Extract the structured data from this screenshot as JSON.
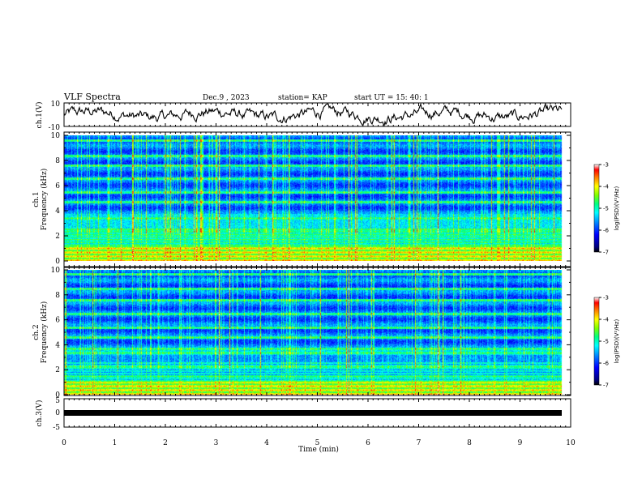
{
  "header": {
    "title": "VLF Spectra",
    "date": "Dec.9 , 2023",
    "station": "station= KAP",
    "start": "start UT = 15: 40: 1"
  },
  "colors": {
    "waveform": "#000000",
    "colormap": [
      "#000000",
      "#00007f",
      "#0000ff",
      "#0080ff",
      "#00ffff",
      "#00ff80",
      "#80ff00",
      "#ffff00",
      "#ff8000",
      "#ff0000",
      "#ffffff"
    ]
  },
  "chart_data": [
    {
      "type": "line",
      "panel": "ch1_waveform",
      "ylabel": "ch.1(V)",
      "ylim": [
        -10,
        10
      ],
      "yticks": [
        "10",
        "-10"
      ],
      "xlim": [
        0,
        10
      ]
    },
    {
      "type": "heatmap",
      "panel": "ch1_spectrogram",
      "ylabel": "ch.1",
      "ylabel2": "Frequency (kHz)",
      "ylim": [
        0,
        10
      ],
      "yticks": [
        "0",
        "2",
        "4",
        "6",
        "8",
        "10"
      ],
      "xlim": [
        0,
        10
      ],
      "colorbar": {
        "label": "log(PSD)(V²/Hz)",
        "range": [
          -7,
          -3
        ],
        "ticks": [
          "-3",
          "-4",
          "-5",
          "-6",
          "-7"
        ]
      }
    },
    {
      "type": "heatmap",
      "panel": "ch2_spectrogram",
      "ylabel": "ch.2",
      "ylabel2": "Frequency (kHz)",
      "ylim": [
        0,
        10
      ],
      "yticks": [
        "0",
        "2",
        "4",
        "6",
        "8",
        "10"
      ],
      "xlim": [
        0,
        10
      ],
      "colorbar": {
        "label": "log(PSD)(V²/Hz)",
        "range": [
          -7,
          -3
        ],
        "ticks": [
          "-3",
          "-4",
          "-5",
          "-6",
          "-7"
        ]
      }
    },
    {
      "type": "line",
      "panel": "ch3_waveform",
      "ylabel": "ch.3(V)",
      "ylim": [
        -5,
        5
      ],
      "yticks": [
        "5",
        "0",
        "-5"
      ],
      "xlim": [
        0,
        10
      ],
      "xlabel": "Time (min)",
      "xticks": [
        "0",
        "1",
        "2",
        "3",
        "4",
        "5",
        "6",
        "7",
        "8",
        "9",
        "10"
      ]
    }
  ]
}
